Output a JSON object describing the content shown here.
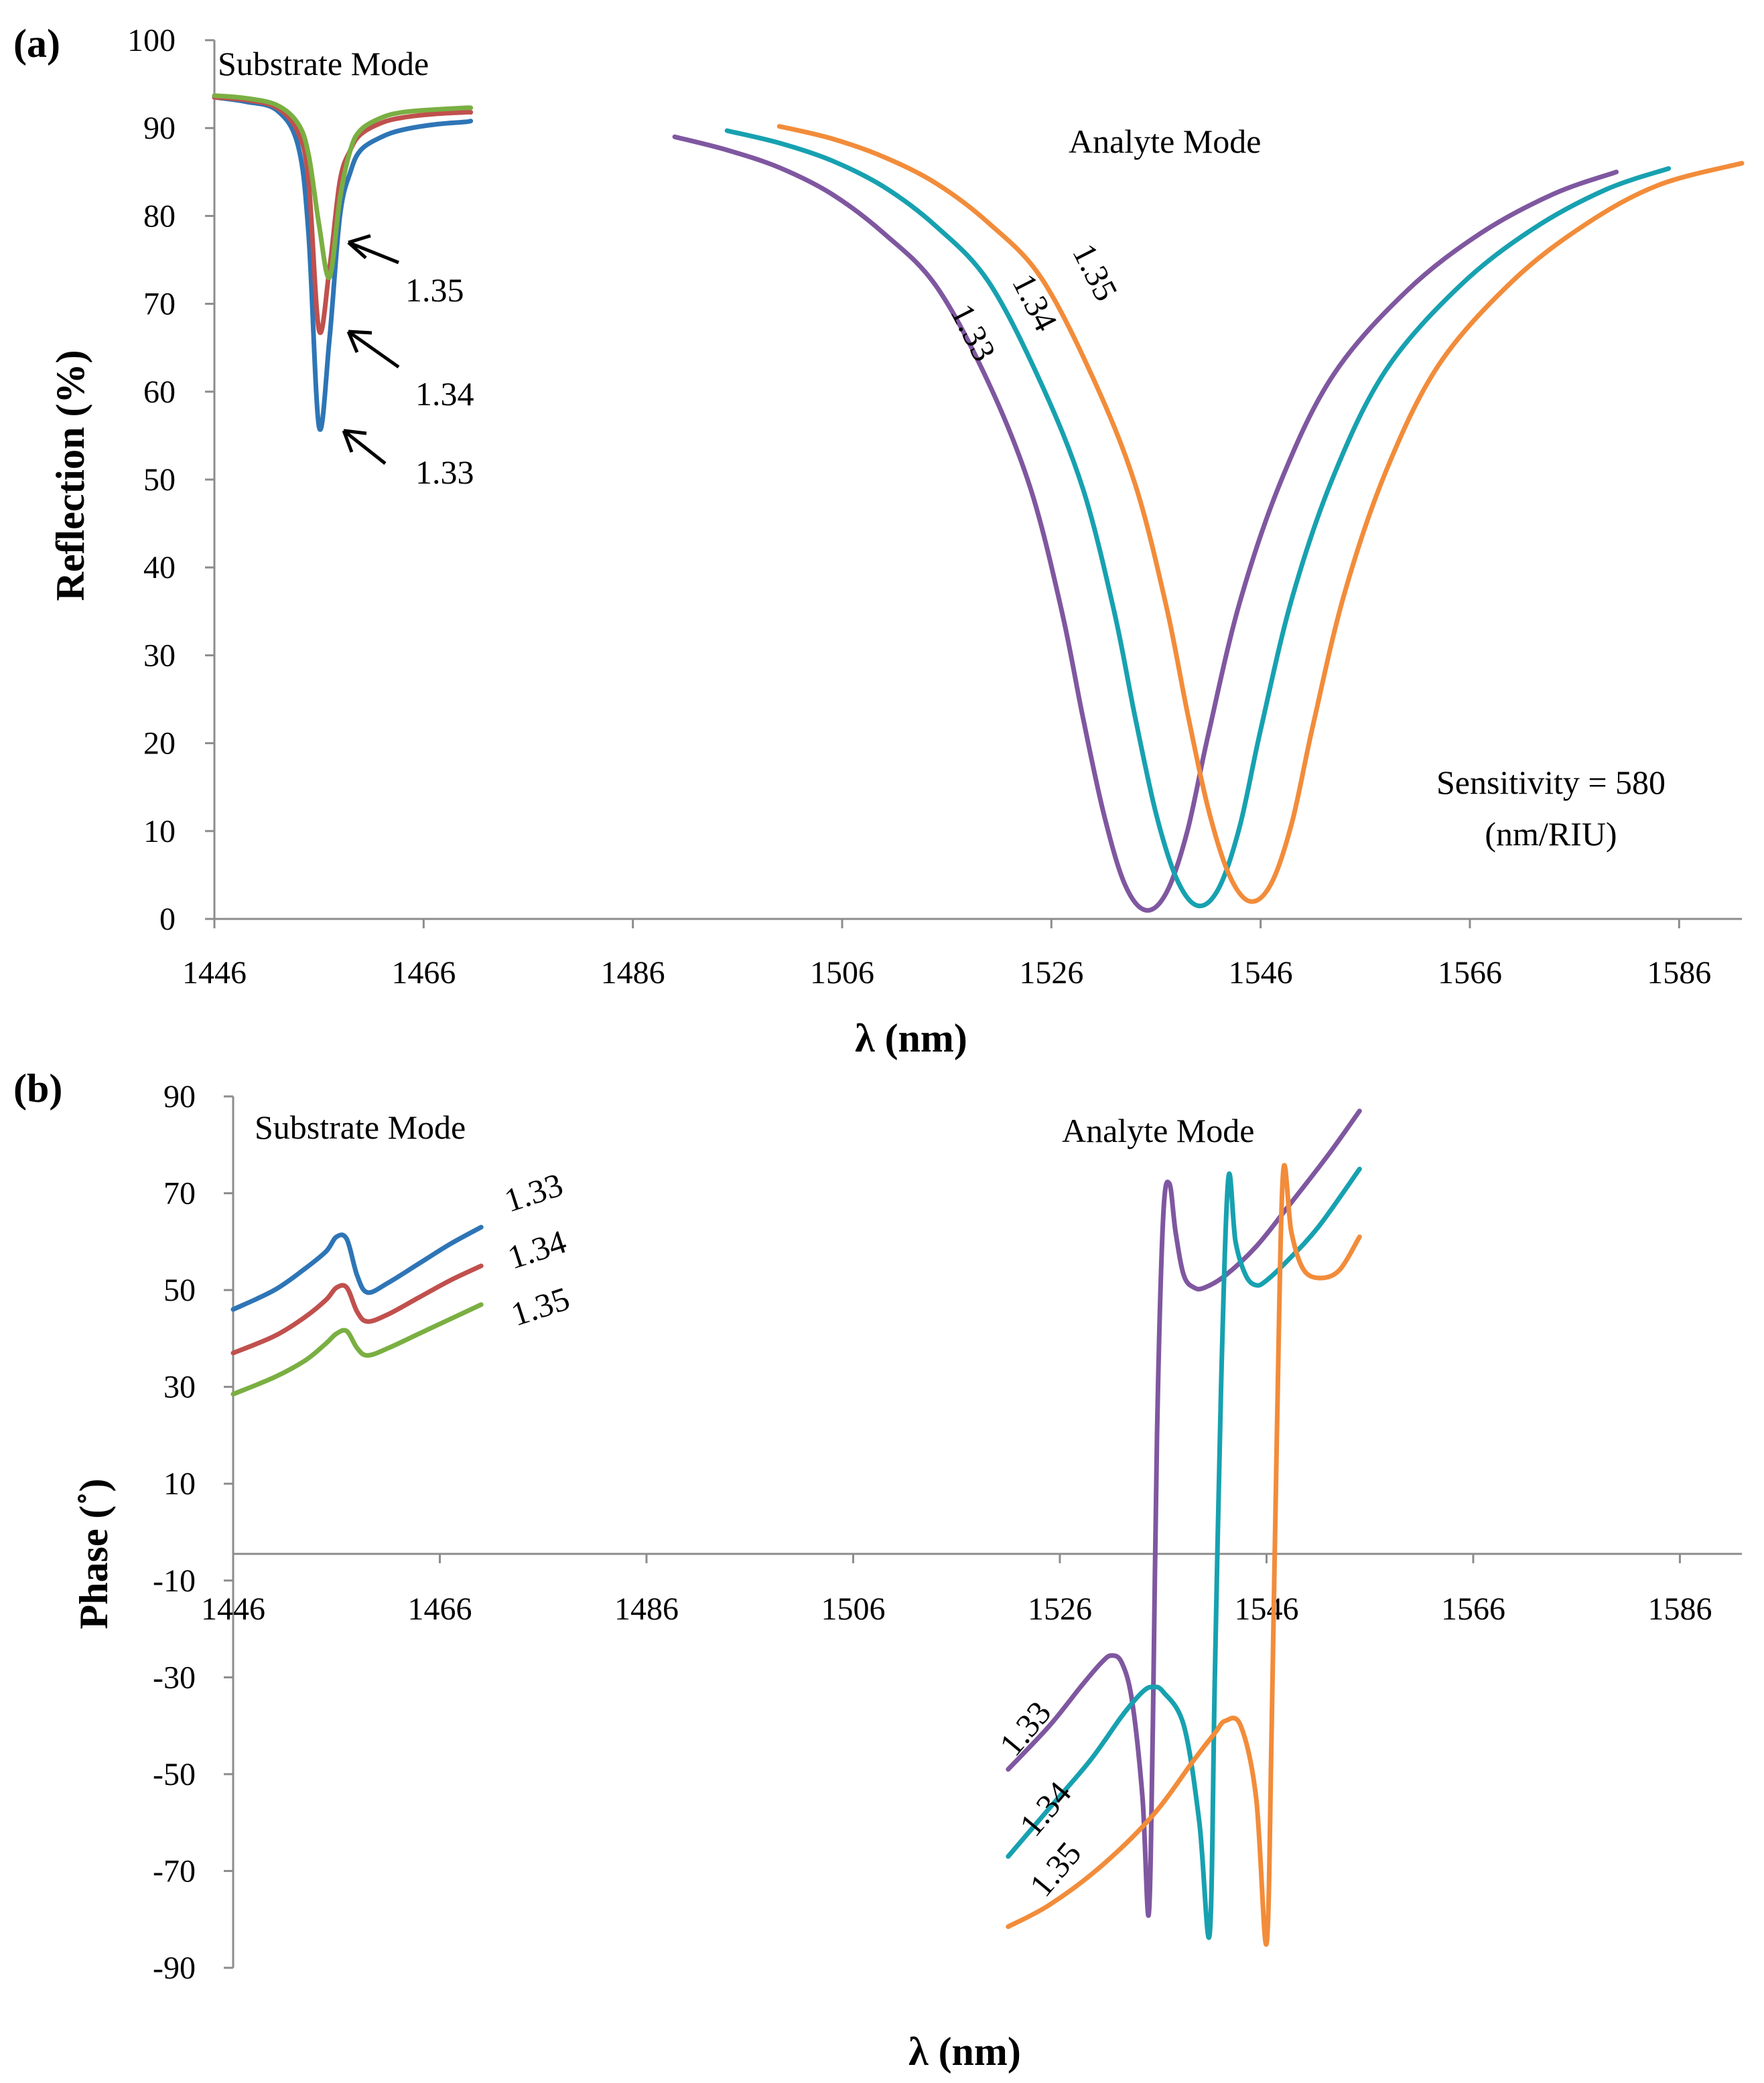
{
  "chart_data": [
    {
      "panel": "(a)",
      "type": "line",
      "xlabel": "λ (nm)",
      "ylabel": "Reflection (%)",
      "xlim": [
        1446,
        1592
      ],
      "ylim": [
        0,
        100
      ],
      "xticks": [
        1446,
        1466,
        1486,
        1506,
        1526,
        1546,
        1566,
        1586
      ],
      "yticks": [
        0,
        10,
        20,
        30,
        40,
        50,
        60,
        70,
        80,
        90,
        100
      ],
      "annotations": [
        {
          "text": "Substrate Mode"
        },
        {
          "text": "Analyte Mode"
        },
        {
          "text": "Sensitivity = 580"
        },
        {
          "text": "(nm/RIU)"
        }
      ],
      "series": [
        {
          "name": "1.33",
          "group": "substrate",
          "color": "#2E75B6",
          "x": [
            1446,
            1449,
            1452,
            1454,
            1455,
            1456,
            1457,
            1458,
            1459,
            1460,
            1462,
            1464,
            1467,
            1470,
            1470.5
          ],
          "y": [
            93.5,
            93.0,
            92.0,
            88.0,
            78.0,
            56.0,
            66.0,
            80.0,
            85.0,
            87.5,
            89.0,
            89.8,
            90.4,
            90.7,
            90.8
          ]
        },
        {
          "name": "1.34",
          "group": "substrate",
          "color": "#C0504D",
          "x": [
            1446,
            1449,
            1452,
            1454,
            1455,
            1456,
            1457,
            1458,
            1459,
            1460,
            1462,
            1464,
            1467,
            1470,
            1470.5
          ],
          "y": [
            93.5,
            93.2,
            92.3,
            89.5,
            84.0,
            67.0,
            74.0,
            84.0,
            87.5,
            89.3,
            90.6,
            91.2,
            91.6,
            91.8,
            91.8
          ]
        },
        {
          "name": "1.35",
          "group": "substrate",
          "color": "#7AAF42",
          "x": [
            1446,
            1449,
            1452,
            1454,
            1455,
            1456,
            1457,
            1458,
            1459,
            1460,
            1462,
            1464,
            1467,
            1470,
            1470.5
          ],
          "y": [
            93.7,
            93.4,
            92.6,
            90.5,
            87.0,
            79.0,
            73.0,
            82.0,
            87.5,
            89.8,
            91.2,
            91.8,
            92.1,
            92.3,
            92.3
          ]
        },
        {
          "name": "1.33",
          "group": "analyte",
          "color": "#7F57A0",
          "x": [
            1490,
            1495,
            1500,
            1505,
            1510,
            1515,
            1520,
            1524,
            1527,
            1529,
            1531,
            1533,
            1535,
            1537,
            1539,
            1541,
            1544,
            1548,
            1553,
            1560,
            1567,
            1574,
            1580
          ],
          "y": [
            89.0,
            87.5,
            85.5,
            82.5,
            78.0,
            72.0,
            61.0,
            49.0,
            35.0,
            23.0,
            12.0,
            4.0,
            1.0,
            3.0,
            10.0,
            21.0,
            36.0,
            50.0,
            62.0,
            71.5,
            78.0,
            82.5,
            85.0
          ]
        },
        {
          "name": "1.34",
          "group": "analyte",
          "color": "#17A1B0",
          "x": [
            1495,
            1500,
            1505,
            1510,
            1515,
            1520,
            1525,
            1529,
            1532,
            1534,
            1536,
            1538,
            1540,
            1542,
            1544,
            1546,
            1549,
            1553,
            1558,
            1565,
            1572,
            1579,
            1585
          ],
          "y": [
            89.7,
            88.3,
            86.3,
            83.3,
            78.8,
            72.5,
            61.0,
            49.0,
            35.0,
            23.0,
            12.0,
            4.5,
            1.5,
            3.5,
            10.5,
            21.5,
            36.5,
            50.5,
            62.5,
            72.0,
            78.5,
            83.0,
            85.4
          ]
        },
        {
          "name": "1.35",
          "group": "analyte",
          "color": "#F28C3A",
          "x": [
            1500,
            1505,
            1510,
            1515,
            1520,
            1525,
            1530,
            1534,
            1537,
            1539,
            1541,
            1543,
            1545,
            1547,
            1549,
            1551,
            1554,
            1558,
            1563,
            1570,
            1577,
            1584,
            1592
          ],
          "y": [
            90.2,
            88.8,
            86.7,
            83.7,
            79.2,
            73.0,
            61.5,
            49.5,
            35.5,
            23.5,
            12.5,
            5.0,
            2.0,
            4.0,
            11.0,
            22.0,
            37.0,
            51.0,
            63.0,
            72.5,
            79.0,
            83.5,
            86.0
          ]
        }
      ]
    },
    {
      "panel": "(b)",
      "type": "line",
      "xlabel": "λ (nm)",
      "ylabel": "Phase (˚)",
      "xlim": [
        1446,
        1592
      ],
      "ylim": [
        -90,
        90
      ],
      "xticks": [
        1446,
        1466,
        1486,
        1506,
        1526,
        1546,
        1566,
        1586
      ],
      "yticks": [
        -90,
        -70,
        -50,
        -30,
        -10,
        10,
        30,
        50,
        70,
        90
      ],
      "annotations": [
        {
          "text": "Substrate Mode"
        },
        {
          "text": "Analyte Mode"
        }
      ],
      "series": [
        {
          "name": "1.33",
          "group": "substrate",
          "color": "#2E75B6",
          "x": [
            1446,
            1450,
            1453,
            1455,
            1456,
            1457,
            1458,
            1459,
            1461,
            1464,
            1467,
            1470
          ],
          "y": [
            46.0,
            50.0,
            54.5,
            58.0,
            61.0,
            60.5,
            53.0,
            49.5,
            51.5,
            55.5,
            59.5,
            63.0
          ]
        },
        {
          "name": "1.34",
          "group": "substrate",
          "color": "#C0504D",
          "x": [
            1446,
            1450,
            1453,
            1455,
            1456,
            1457,
            1458,
            1459,
            1461,
            1464,
            1467,
            1470
          ],
          "y": [
            37.0,
            40.5,
            44.5,
            48.0,
            50.5,
            50.5,
            45.5,
            43.5,
            45.0,
            48.5,
            52.0,
            55.0
          ]
        },
        {
          "name": "1.35",
          "group": "substrate",
          "color": "#7AAF42",
          "x": [
            1446,
            1450,
            1453,
            1455,
            1456,
            1457,
            1458,
            1459,
            1461,
            1464,
            1467,
            1470
          ],
          "y": [
            28.5,
            32.0,
            35.5,
            39.0,
            41.0,
            41.5,
            38.0,
            36.5,
            38.0,
            41.0,
            44.0,
            47.0
          ]
        },
        {
          "name": "1.33",
          "group": "analyte",
          "color": "#7F57A0",
          "x": [
            1521,
            1525,
            1528,
            1530,
            1531,
            1532,
            1533,
            1534,
            1534.6,
            1535.0,
            1535.4,
            1536.0,
            1536.6,
            1537.2,
            1538,
            1539,
            1540,
            1542,
            1545,
            1548,
            1552,
            1555
          ],
          "y": [
            -49.0,
            -40.0,
            -32.0,
            -27.0,
            -25.5,
            -27.0,
            -35.0,
            -55.0,
            -79.0,
            -40.0,
            20.0,
            65.0,
            72.0,
            62.0,
            53.0,
            50.5,
            50.5,
            53.0,
            59.0,
            67.0,
            78.0,
            87.0
          ]
        },
        {
          "name": "1.34",
          "group": "analyte",
          "color": "#17A1B0",
          "x": [
            1521,
            1525,
            1529,
            1532,
            1534,
            1535,
            1536,
            1538,
            1539.5,
            1540.5,
            1541.0,
            1541.6,
            1542.3,
            1543.0,
            1544,
            1545,
            1546,
            1548,
            1551,
            1555
          ],
          "y": [
            -67.0,
            -57.0,
            -47.0,
            -38.0,
            -33.0,
            -32.0,
            -33.0,
            -40.0,
            -60.0,
            -83.0,
            -30.0,
            30.0,
            73.0,
            60.0,
            53.0,
            51.0,
            52.0,
            56.0,
            63.0,
            75.0
          ]
        },
        {
          "name": "1.35",
          "group": "analyte",
          "color": "#F28C3A",
          "x": [
            1521,
            1525,
            1530,
            1535,
            1539,
            1541,
            1542,
            1543.5,
            1545,
            1546.0,
            1546.5,
            1547.0,
            1547.6,
            1548.4,
            1549.5,
            1551,
            1553,
            1555
          ],
          "y": [
            -81.5,
            -77.0,
            -69.0,
            -58.5,
            -47.0,
            -41.5,
            -39.0,
            -40.0,
            -55.0,
            -85.0,
            -40.0,
            20.0,
            74.0,
            62.0,
            54.5,
            52.5,
            54.0,
            61.0
          ]
        }
      ]
    }
  ],
  "panels": [
    {
      "label": "(a)",
      "substrate_labels": [
        "1.35",
        "1.34",
        "1.33"
      ],
      "analyte_labels": [
        "1.33",
        "1.34",
        "1.35"
      ]
    },
    {
      "label": "(b)",
      "substrate_labels": [
        "1.33",
        "1.34",
        "1.35"
      ],
      "analyte_labels": [
        "1.33",
        "1.34",
        "1.35"
      ]
    }
  ]
}
